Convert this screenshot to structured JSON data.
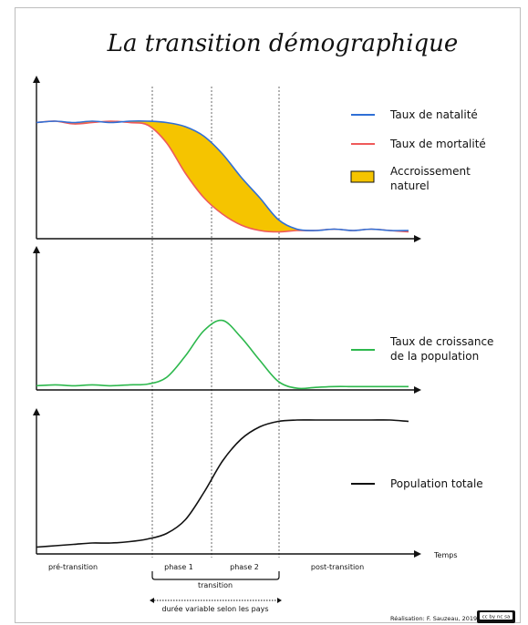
{
  "title": "La transition démographique",
  "legend": {
    "natalite": "Taux de natalité",
    "mortalite": "Taux de mortalité",
    "accroissement_line1": "Accroissement",
    "accroissement_line2": "naturel",
    "croissance_line1": "Taux de croissance",
    "croissance_line2": "de la population",
    "population": "Population totale"
  },
  "axis": {
    "x_label": "Temps"
  },
  "phases": {
    "pre": "pré-transition",
    "phase1": "phase 1",
    "phase2": "phase 2",
    "post": "post-transition",
    "transition": "transition",
    "duree": "durée variable selon les pays"
  },
  "credit": "Réalisation: F. Sauzeau, 2019",
  "license_badge": "cc by nc sa",
  "colors": {
    "natalite": "#2f6fd6",
    "mortalite": "#ef5a5a",
    "accroissement": "#f5c400",
    "croissance": "#2db84d",
    "population": "#111111"
  },
  "chart_data": [
    {
      "type": "line",
      "title": "",
      "xlabel": "",
      "ylabel": "",
      "legend": "right",
      "series": [
        {
          "name": "Taux de natalité",
          "x": [
            0,
            5,
            10,
            15,
            20,
            25,
            30,
            35,
            40,
            45,
            50,
            55,
            60,
            65,
            70,
            75,
            80,
            85,
            90,
            95,
            100
          ],
          "values": [
            0.85,
            0.86,
            0.85,
            0.86,
            0.85,
            0.86,
            0.86,
            0.85,
            0.82,
            0.75,
            0.62,
            0.45,
            0.3,
            0.14,
            0.07,
            0.06,
            0.07,
            0.06,
            0.07,
            0.06,
            0.06
          ]
        },
        {
          "name": "Taux de mortalité",
          "x": [
            0,
            5,
            10,
            15,
            20,
            25,
            30,
            35,
            40,
            45,
            50,
            55,
            60,
            65,
            70,
            75,
            80,
            85,
            90,
            95,
            100
          ],
          "values": [
            0.85,
            0.86,
            0.84,
            0.85,
            0.86,
            0.85,
            0.83,
            0.7,
            0.48,
            0.3,
            0.18,
            0.1,
            0.06,
            0.05,
            0.06,
            0.06,
            0.07,
            0.06,
            0.07,
            0.06,
            0.05
          ]
        }
      ]
    },
    {
      "type": "line",
      "title": "",
      "xlabel": "",
      "ylabel": "",
      "legend": "right",
      "series": [
        {
          "name": "Taux de croissance de la population",
          "x": [
            0,
            5,
            10,
            15,
            20,
            25,
            30,
            35,
            40,
            45,
            50,
            55,
            60,
            65,
            70,
            75,
            80,
            85,
            90,
            95,
            100
          ],
          "values": [
            0.05,
            0.06,
            0.05,
            0.06,
            0.05,
            0.06,
            0.07,
            0.15,
            0.4,
            0.7,
            0.82,
            0.62,
            0.35,
            0.1,
            0.02,
            0.03,
            0.04,
            0.04,
            0.04,
            0.04,
            0.04
          ]
        }
      ]
    },
    {
      "type": "line",
      "title": "",
      "xlabel": "Temps",
      "ylabel": "",
      "legend": "right",
      "series": [
        {
          "name": "Population totale",
          "x": [
            0,
            5,
            10,
            15,
            20,
            25,
            30,
            35,
            40,
            45,
            50,
            55,
            60,
            65,
            70,
            75,
            80,
            85,
            90,
            95,
            100
          ],
          "values": [
            0.05,
            0.06,
            0.07,
            0.08,
            0.08,
            0.09,
            0.11,
            0.15,
            0.25,
            0.45,
            0.68,
            0.84,
            0.93,
            0.97,
            0.98,
            0.98,
            0.98,
            0.98,
            0.98,
            0.98,
            0.97
          ]
        }
      ]
    }
  ]
}
